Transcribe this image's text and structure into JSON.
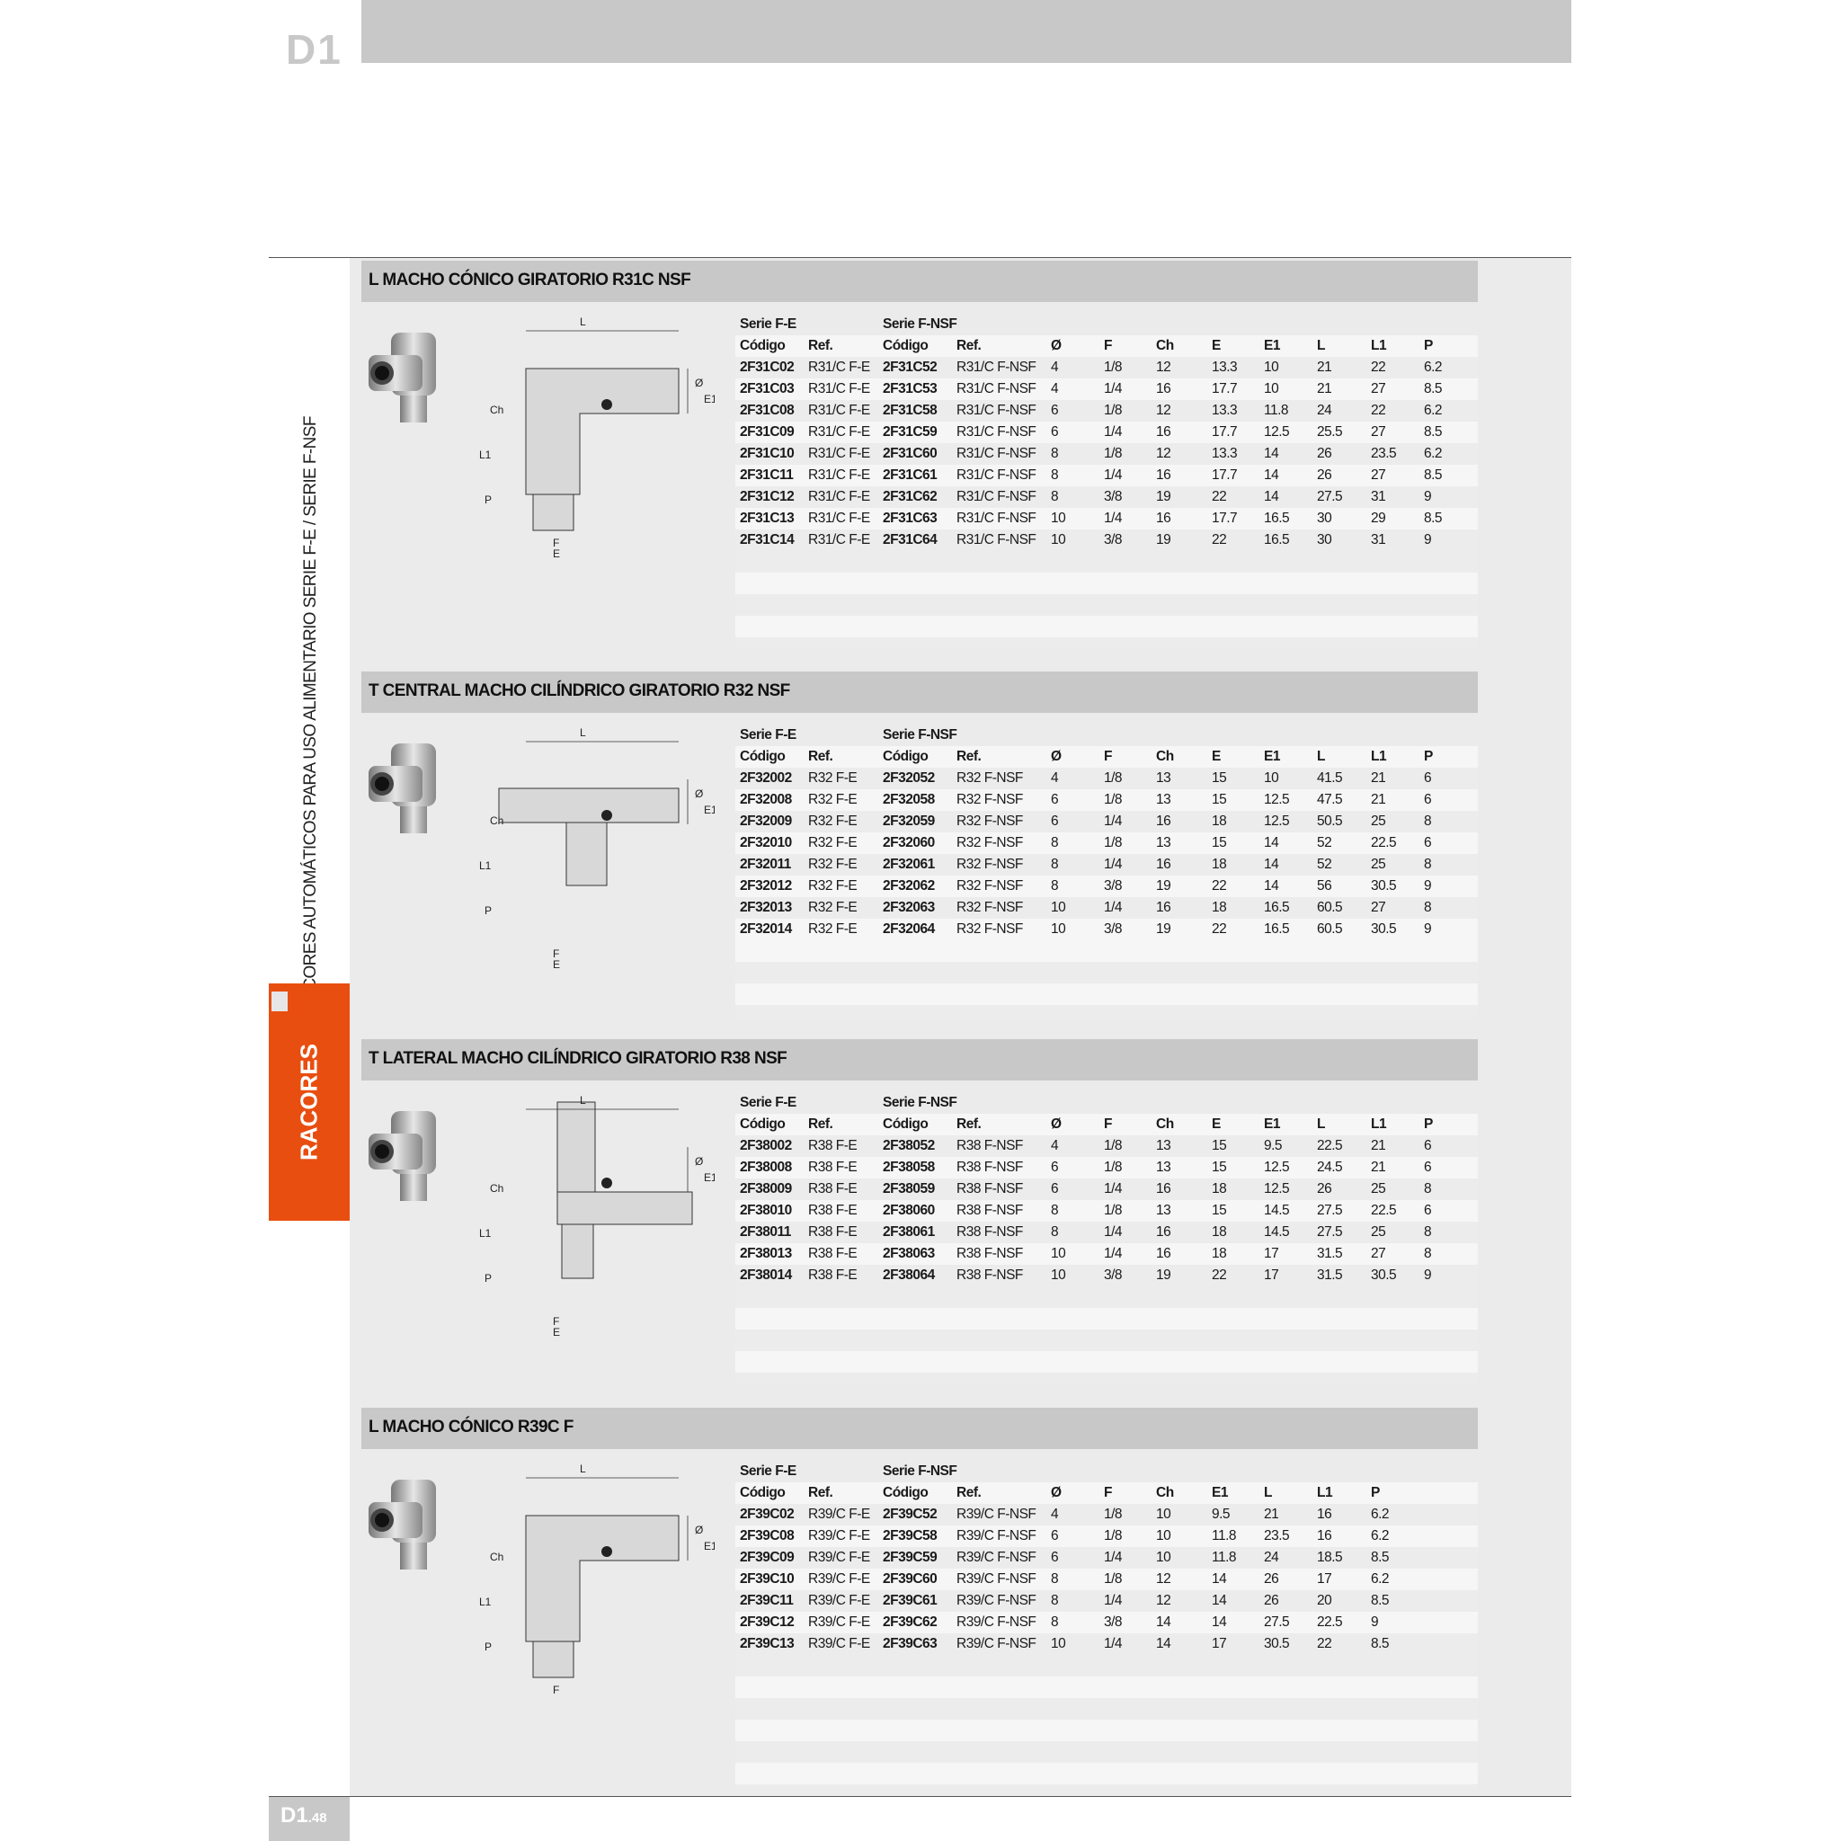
{
  "page": {
    "chapter_code": "D1",
    "side_title": "RACORES AUTOMÁTICOS PARA USO ALIMENTARIO SERIE F-E / SERIE F-NSF",
    "side_tab": "RACORES",
    "footer_code": "D1",
    "footer_page": ".48",
    "accent_color": "#e84e10"
  },
  "sections": [
    {
      "title": "L MACHO CÓNICO GIRATORIO R31C NSF",
      "series": [
        "Serie F-E",
        "Serie F-NSF"
      ],
      "columns": [
        "Código",
        "Ref.",
        "Código",
        "Ref.",
        "Ø",
        "F",
        "Ch",
        "E",
        "E1",
        "L",
        "L1",
        "P"
      ],
      "drawing_labels": [
        "L",
        "Ø",
        "E1",
        "Ch",
        "L1",
        "P",
        "F",
        "E"
      ],
      "rows": [
        [
          "2F31C02",
          "R31/C F-E",
          "2F31C52",
          "R31/C F-NSF",
          "4",
          "1/8",
          "12",
          "13.3",
          "10",
          "21",
          "22",
          "6.2"
        ],
        [
          "2F31C03",
          "R31/C F-E",
          "2F31C53",
          "R31/C F-NSF",
          "4",
          "1/4",
          "16",
          "17.7",
          "10",
          "21",
          "27",
          "8.5"
        ],
        [
          "2F31C08",
          "R31/C F-E",
          "2F31C58",
          "R31/C F-NSF",
          "6",
          "1/8",
          "12",
          "13.3",
          "11.8",
          "24",
          "22",
          "6.2"
        ],
        [
          "2F31C09",
          "R31/C F-E",
          "2F31C59",
          "R31/C F-NSF",
          "6",
          "1/4",
          "16",
          "17.7",
          "12.5",
          "25.5",
          "27",
          "8.5"
        ],
        [
          "2F31C10",
          "R31/C F-E",
          "2F31C60",
          "R31/C F-NSF",
          "8",
          "1/8",
          "12",
          "13.3",
          "14",
          "26",
          "23.5",
          "6.2"
        ],
        [
          "2F31C11",
          "R31/C F-E",
          "2F31C61",
          "R31/C F-NSF",
          "8",
          "1/4",
          "16",
          "17.7",
          "14",
          "26",
          "27",
          "8.5"
        ],
        [
          "2F31C12",
          "R31/C F-E",
          "2F31C62",
          "R31/C F-NSF",
          "8",
          "3/8",
          "19",
          "22",
          "14",
          "27.5",
          "31",
          "9"
        ],
        [
          "2F31C13",
          "R31/C F-E",
          "2F31C63",
          "R31/C F-NSF",
          "10",
          "1/4",
          "16",
          "17.7",
          "16.5",
          "30",
          "29",
          "8.5"
        ],
        [
          "2F31C14",
          "R31/C F-E",
          "2F31C64",
          "R31/C F-NSF",
          "10",
          "3/8",
          "19",
          "22",
          "16.5",
          "30",
          "31",
          "9"
        ]
      ]
    },
    {
      "title": "T CENTRAL MACHO CILÍNDRICO GIRATORIO R32 NSF",
      "series": [
        "Serie F-E",
        "Serie F-NSF"
      ],
      "columns": [
        "Código",
        "Ref.",
        "Código",
        "Ref.",
        "Ø",
        "F",
        "Ch",
        "E",
        "E1",
        "L",
        "L1",
        "P"
      ],
      "drawing_labels": [
        "L",
        "Ø",
        "E1",
        "Ch",
        "L1",
        "P",
        "F",
        "E"
      ],
      "rows": [
        [
          "2F32002",
          "R32 F-E",
          "2F32052",
          "R32 F-NSF",
          "4",
          "1/8",
          "13",
          "15",
          "10",
          "41.5",
          "21",
          "6"
        ],
        [
          "2F32008",
          "R32 F-E",
          "2F32058",
          "R32 F-NSF",
          "6",
          "1/8",
          "13",
          "15",
          "12.5",
          "47.5",
          "21",
          "6"
        ],
        [
          "2F32009",
          "R32 F-E",
          "2F32059",
          "R32 F-NSF",
          "6",
          "1/4",
          "16",
          "18",
          "12.5",
          "50.5",
          "25",
          "8"
        ],
        [
          "2F32010",
          "R32 F-E",
          "2F32060",
          "R32 F-NSF",
          "8",
          "1/8",
          "13",
          "15",
          "14",
          "52",
          "22.5",
          "6"
        ],
        [
          "2F32011",
          "R32 F-E",
          "2F32061",
          "R32 F-NSF",
          "8",
          "1/4",
          "16",
          "18",
          "14",
          "52",
          "25",
          "8"
        ],
        [
          "2F32012",
          "R32 F-E",
          "2F32062",
          "R32 F-NSF",
          "8",
          "3/8",
          "19",
          "22",
          "14",
          "56",
          "30.5",
          "9"
        ],
        [
          "2F32013",
          "R32 F-E",
          "2F32063",
          "R32 F-NSF",
          "10",
          "1/4",
          "16",
          "18",
          "16.5",
          "60.5",
          "27",
          "8"
        ],
        [
          "2F32014",
          "R32 F-E",
          "2F32064",
          "R32 F-NSF",
          "10",
          "3/8",
          "19",
          "22",
          "16.5",
          "60.5",
          "30.5",
          "9"
        ]
      ]
    },
    {
      "title": "T LATERAL MACHO CILÍNDRICO GIRATORIO R38 NSF",
      "series": [
        "Serie F-E",
        "Serie F-NSF"
      ],
      "columns": [
        "Código",
        "Ref.",
        "Código",
        "Ref.",
        "Ø",
        "F",
        "Ch",
        "E",
        "E1",
        "L",
        "L1",
        "P"
      ],
      "drawing_labels": [
        "L",
        "Ø",
        "E1",
        "Ch",
        "L1",
        "P",
        "F",
        "E"
      ],
      "rows": [
        [
          "2F38002",
          "R38 F-E",
          "2F38052",
          "R38 F-NSF",
          "4",
          "1/8",
          "13",
          "15",
          "9.5",
          "22.5",
          "21",
          "6"
        ],
        [
          "2F38008",
          "R38 F-E",
          "2F38058",
          "R38 F-NSF",
          "6",
          "1/8",
          "13",
          "15",
          "12.5",
          "24.5",
          "21",
          "6"
        ],
        [
          "2F38009",
          "R38 F-E",
          "2F38059",
          "R38 F-NSF",
          "6",
          "1/4",
          "16",
          "18",
          "12.5",
          "26",
          "25",
          "8"
        ],
        [
          "2F38010",
          "R38 F-E",
          "2F38060",
          "R38 F-NSF",
          "8",
          "1/8",
          "13",
          "15",
          "14.5",
          "27.5",
          "22.5",
          "6"
        ],
        [
          "2F38011",
          "R38 F-E",
          "2F38061",
          "R38 F-NSF",
          "8",
          "1/4",
          "16",
          "18",
          "14.5",
          "27.5",
          "25",
          "8"
        ],
        [
          "2F38013",
          "R38 F-E",
          "2F38063",
          "R38 F-NSF",
          "10",
          "1/4",
          "16",
          "18",
          "17",
          "31.5",
          "27",
          "8"
        ],
        [
          "2F38014",
          "R38 F-E",
          "2F38064",
          "R38 F-NSF",
          "10",
          "3/8",
          "19",
          "22",
          "17",
          "31.5",
          "30.5",
          "9"
        ]
      ]
    },
    {
      "title": "L MACHO CÓNICO R39C F",
      "series": [
        "Serie F-E",
        "Serie F-NSF"
      ],
      "columns": [
        "Código",
        "Ref.",
        "Código",
        "Ref.",
        "Ø",
        "F",
        "Ch",
        "E1",
        "L",
        "L1",
        "P"
      ],
      "drawing_labels": [
        "L",
        "Ø",
        "E1",
        "Ch",
        "L1",
        "P",
        "F"
      ],
      "rows": [
        [
          "2F39C02",
          "R39/C F-E",
          "2F39C52",
          "R39/C F-NSF",
          "4",
          "1/8",
          "10",
          "9.5",
          "21",
          "16",
          "6.2"
        ],
        [
          "2F39C08",
          "R39/C F-E",
          "2F39C58",
          "R39/C F-NSF",
          "6",
          "1/8",
          "10",
          "11.8",
          "23.5",
          "16",
          "6.2"
        ],
        [
          "2F39C09",
          "R39/C F-E",
          "2F39C59",
          "R39/C F-NSF",
          "6",
          "1/4",
          "10",
          "11.8",
          "24",
          "18.5",
          "8.5"
        ],
        [
          "2F39C10",
          "R39/C F-E",
          "2F39C60",
          "R39/C F-NSF",
          "8",
          "1/8",
          "12",
          "14",
          "26",
          "17",
          "6.2"
        ],
        [
          "2F39C11",
          "R39/C F-E",
          "2F39C61",
          "R39/C F-NSF",
          "8",
          "1/4",
          "12",
          "14",
          "26",
          "20",
          "8.5"
        ],
        [
          "2F39C12",
          "R39/C F-E",
          "2F39C62",
          "R39/C F-NSF",
          "8",
          "3/8",
          "14",
          "14",
          "27.5",
          "22.5",
          "9"
        ],
        [
          "2F39C13",
          "R39/C F-E",
          "2F39C63",
          "R39/C F-NSF",
          "10",
          "1/4",
          "14",
          "17",
          "30.5",
          "22",
          "8.5"
        ]
      ]
    }
  ]
}
